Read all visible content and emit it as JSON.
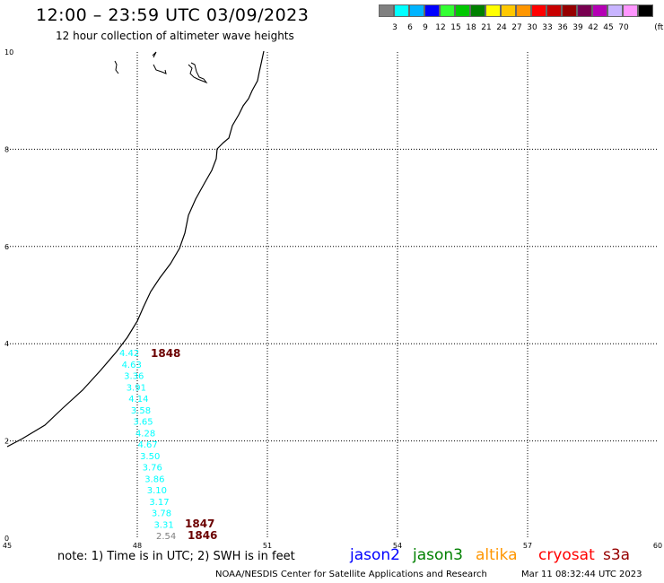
{
  "title": "12:00 – 23:59 UTC 03/09/2023",
  "subtitle": "12 hour collection of altimeter wave heights",
  "colorbar": {
    "colors": [
      "#808080",
      "#00ffff",
      "#00b4ff",
      "#0000ff",
      "#32ff32",
      "#00c800",
      "#008000",
      "#ffff00",
      "#ffc800",
      "#ff9600",
      "#ff0000",
      "#c80000",
      "#960000",
      "#780050",
      "#b400b4",
      "#c8b4ff",
      "#ff96ff",
      "#000000"
    ],
    "labels": [
      "3",
      "6",
      "9",
      "12",
      "15",
      "18",
      "21",
      "24",
      "27",
      "30",
      "33",
      "36",
      "39",
      "42",
      "45",
      "70"
    ],
    "unit": "(ft)"
  },
  "axes": {
    "x_ticks": [
      "45",
      "48",
      "51",
      "54",
      "57",
      "60"
    ],
    "y_ticks": [
      "0",
      "2",
      "4",
      "6",
      "8",
      "10"
    ]
  },
  "swh_values": [
    {
      "value": "4.42",
      "color": "#00ffff"
    },
    {
      "value": "4.63",
      "color": "#00ffff"
    },
    {
      "value": "3.36",
      "color": "#00ffff"
    },
    {
      "value": "3.91",
      "color": "#00ffff"
    },
    {
      "value": "4.14",
      "color": "#00ffff"
    },
    {
      "value": "3.58",
      "color": "#00ffff"
    },
    {
      "value": "3.65",
      "color": "#00ffff"
    },
    {
      "value": "4.28",
      "color": "#00ffff"
    },
    {
      "value": "4.67",
      "color": "#00ffff"
    },
    {
      "value": "3.50",
      "color": "#00ffff"
    },
    {
      "value": "3.76",
      "color": "#00ffff"
    },
    {
      "value": "3.86",
      "color": "#00ffff"
    },
    {
      "value": "3.10",
      "color": "#00ffff"
    },
    {
      "value": "3.17",
      "color": "#00ffff"
    },
    {
      "value": "3.78",
      "color": "#00ffff"
    },
    {
      "value": "3.31",
      "color": "#00ffff"
    },
    {
      "value": "2.54",
      "color": "#808080"
    }
  ],
  "time_labels": [
    "1848",
    "1847",
    "1846"
  ],
  "note": "note:  1) Time is in UTC;  2) SWH is in feet",
  "satellites": [
    {
      "name": "jason2",
      "color": "#0000ff"
    },
    {
      "name": "jason3",
      "color": "#008000"
    },
    {
      "name": "altika",
      "color": "#ff9600"
    },
    {
      "name": "cryosat",
      "color": "#ff0000"
    },
    {
      "name": "s3a",
      "color": "#960000"
    }
  ],
  "credit": "NOAA/NESDIS Center for Satellite Applications and Research",
  "timestamp": "Mar 11 08:32:44 UTC 2023"
}
